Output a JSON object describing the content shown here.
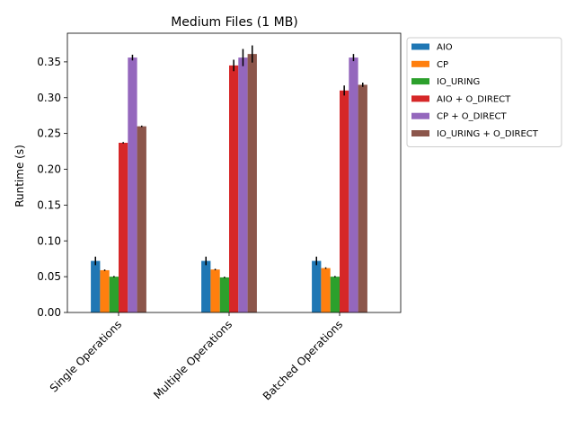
{
  "chart_data": {
    "type": "bar",
    "title": "Medium Files (1 MB)",
    "xlabel": "",
    "ylabel": "Runtime (s)",
    "ylim": [
      0,
      0.39
    ],
    "yticks": [
      0.0,
      0.05,
      0.1,
      0.15,
      0.2,
      0.25,
      0.3,
      0.35
    ],
    "ytick_labels": [
      "0.00",
      "0.05",
      "0.10",
      "0.15",
      "0.20",
      "0.25",
      "0.30",
      "0.35"
    ],
    "categories": [
      "Single Operations",
      "Multiple Operations",
      "Batched Operations"
    ],
    "legend_position": "outside-top-right",
    "grid": false,
    "series": [
      {
        "name": "AIO",
        "color": "#1f77b4",
        "values": [
          0.072,
          0.072,
          0.072
        ],
        "errors": [
          0.006,
          0.006,
          0.006
        ]
      },
      {
        "name": "CP",
        "color": "#ff7f0e",
        "values": [
          0.059,
          0.06,
          0.062
        ],
        "errors": [
          0.001,
          0.001,
          0.001
        ]
      },
      {
        "name": "IO_URING",
        "color": "#2ca02c",
        "values": [
          0.05,
          0.049,
          0.05
        ],
        "errors": [
          0.001,
          0.001,
          0.001
        ]
      },
      {
        "name": "AIO + O_DIRECT",
        "color": "#d62728",
        "values": [
          0.237,
          0.345,
          0.31
        ],
        "errors": [
          0.001,
          0.008,
          0.007
        ]
      },
      {
        "name": "CP + O_DIRECT",
        "color": "#9467bd",
        "values": [
          0.356,
          0.356,
          0.356
        ],
        "errors": [
          0.004,
          0.012,
          0.005
        ]
      },
      {
        "name": "IO_URING + O_DIRECT",
        "color": "#8c564b",
        "values": [
          0.26,
          0.361,
          0.318
        ],
        "errors": [
          0.001,
          0.012,
          0.003
        ]
      }
    ]
  }
}
